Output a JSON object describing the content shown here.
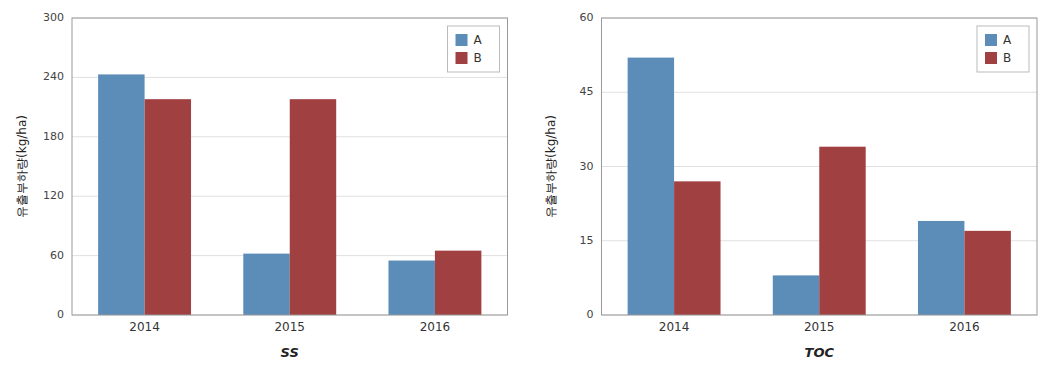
{
  "chart_data": [
    {
      "type": "bar",
      "xlabel": "SS",
      "ylabel": "유출부하량(kg/ha)",
      "categories": [
        "2014",
        "2015",
        "2016"
      ],
      "series": [
        {
          "name": "A",
          "color": "#5B8DB8",
          "values": [
            243,
            62,
            55
          ]
        },
        {
          "name": "B",
          "color": "#A04040",
          "values": [
            218,
            218,
            65
          ]
        }
      ],
      "ylim": [
        0,
        300
      ],
      "yticks": [
        0,
        60,
        120,
        180,
        240,
        300
      ],
      "grid": true,
      "legend": "upper right"
    },
    {
      "type": "bar",
      "xlabel": "TOC",
      "ylabel": "유출부하량(kg/ha)",
      "categories": [
        "2014",
        "2015",
        "2016"
      ],
      "series": [
        {
          "name": "A",
          "color": "#5B8DB8",
          "values": [
            52,
            8,
            19
          ]
        },
        {
          "name": "B",
          "color": "#A04040",
          "values": [
            27,
            34,
            17
          ]
        }
      ],
      "ylim": [
        0,
        60
      ],
      "yticks": [
        0,
        15,
        30,
        45,
        60
      ],
      "grid": true,
      "legend": "upper right"
    }
  ]
}
